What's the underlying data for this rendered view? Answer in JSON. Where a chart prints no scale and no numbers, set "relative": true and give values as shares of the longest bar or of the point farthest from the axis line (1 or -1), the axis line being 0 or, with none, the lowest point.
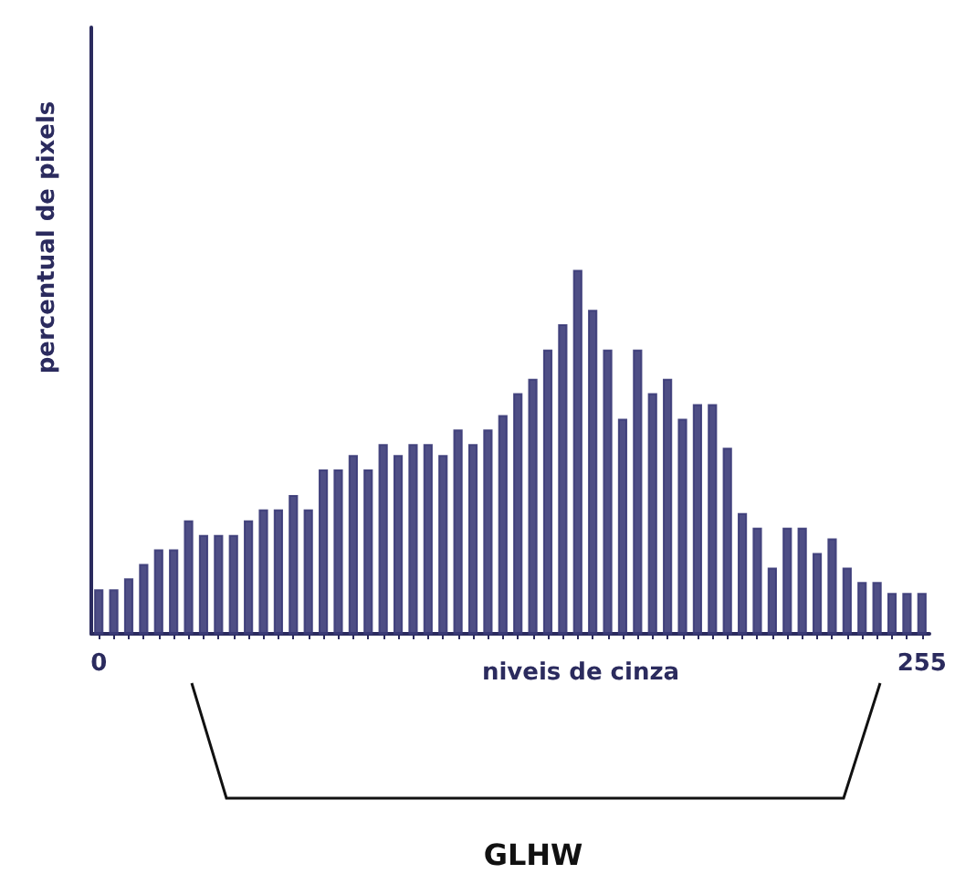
{
  "chart_data": {
    "type": "bar",
    "relative": true,
    "xlabel": "niveis de cinza",
    "ylabel": "percentual de pixels",
    "categories": [
      "0",
      null,
      null,
      null,
      null,
      null,
      null,
      null,
      null,
      null,
      null,
      null,
      null,
      null,
      null,
      null,
      null,
      null,
      null,
      null,
      null,
      null,
      null,
      null,
      null,
      null,
      null,
      null,
      null,
      null,
      null,
      null,
      null,
      null,
      null,
      null,
      null,
      null,
      null,
      null,
      null,
      null,
      null,
      null,
      null,
      null,
      null,
      null,
      null,
      null,
      null,
      null,
      null,
      null,
      null,
      "255"
    ],
    "values": [
      0.12,
      0.12,
      0.15,
      0.19,
      0.23,
      0.23,
      0.31,
      0.27,
      0.27,
      0.27,
      0.31,
      0.34,
      0.34,
      0.38,
      0.34,
      0.45,
      0.45,
      0.49,
      0.45,
      0.52,
      0.49,
      0.52,
      0.52,
      0.49,
      0.56,
      0.52,
      0.56,
      0.6,
      0.66,
      0.7,
      0.78,
      0.85,
      1,
      0.89,
      0.78,
      0.59,
      0.78,
      0.66,
      0.7,
      0.59,
      0.63,
      0.63,
      0.51,
      0.33,
      0.29,
      0.18,
      0.29,
      0.29,
      0.22,
      0.26,
      0.18,
      0.14,
      0.14,
      0.11,
      0.11,
      0.11
    ],
    "color": "#3b3b78",
    "annotations": [
      "GLHW"
    ],
    "grid": false
  }
}
